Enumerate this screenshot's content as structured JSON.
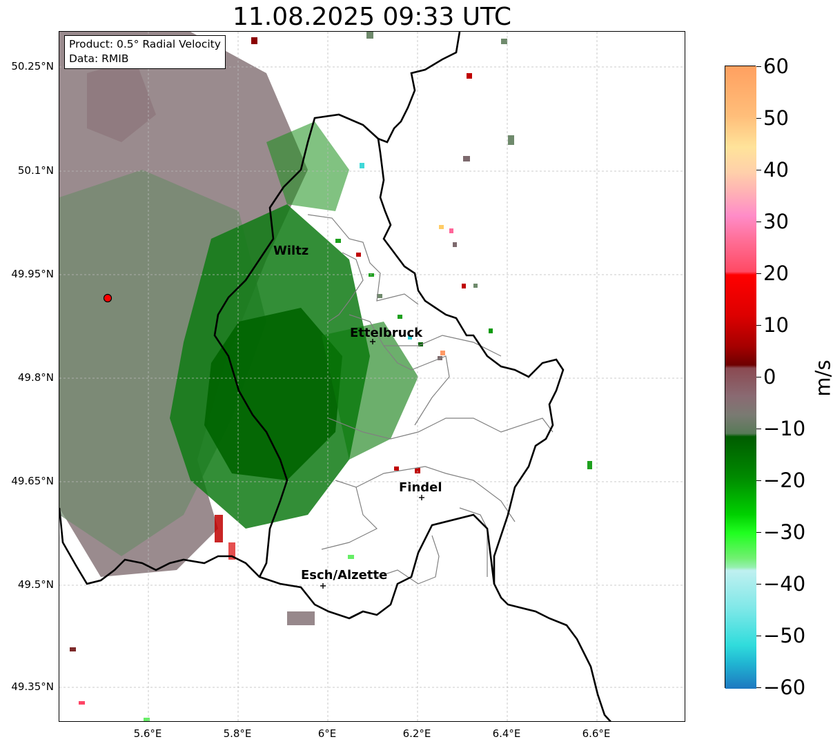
{
  "title": "11.08.2025 09:33 UTC",
  "info": {
    "product": "Product: 0.5° Radial Velocity",
    "source": "Data: RMIB"
  },
  "axes": {
    "lat_ticks": [
      "50.25°N",
      "50.1°N",
      "49.95°N",
      "49.8°N",
      "49.65°N",
      "49.5°N",
      "49.35°N"
    ],
    "lon_ticks": [
      "5.6°E",
      "5.8°E",
      "6°E",
      "6.2°E",
      "6.4°E",
      "6.6°E"
    ]
  },
  "cities": [
    {
      "name": "Wiltz"
    },
    {
      "name": "Ettelbruck"
    },
    {
      "name": "Findel"
    },
    {
      "name": "Esch/Alzette"
    }
  ],
  "colorbar": {
    "unit": "m/s",
    "ticks": [
      "60",
      "50",
      "40",
      "30",
      "20",
      "10",
      "0",
      "−10",
      "−20",
      "−30",
      "−40",
      "−50",
      "−60"
    ],
    "min": -60,
    "max": 60
  },
  "colors": {
    "radar_site": "#ff0000",
    "border": "#000000",
    "canton": "#808080",
    "grid": "#bbbbbb"
  }
}
